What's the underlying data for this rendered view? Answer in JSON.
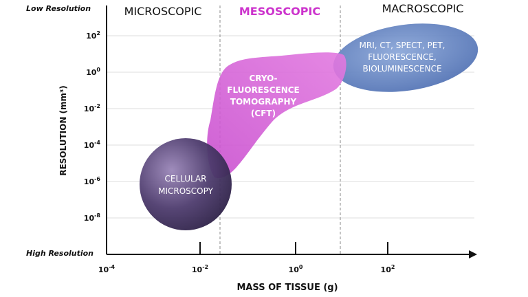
{
  "labels": {
    "low_resolution": "Low Resolution",
    "high_resolution": "High Resolution",
    "y_axis": "RESOLUTION (mm³)",
    "x_axis": "MASS OF TISSUE (g)"
  },
  "regions": {
    "microscopic": "MICROSCOPIC",
    "mesoscopic": "MESOSCOPIC",
    "macroscopic": "MACROSCOPIC"
  },
  "y_ticks": [
    {
      "base": "10",
      "exp": "2"
    },
    {
      "base": "10",
      "exp": "0"
    },
    {
      "base": "10",
      "exp": "-2"
    },
    {
      "base": "10",
      "exp": "-4"
    },
    {
      "base": "10",
      "exp": "-6"
    },
    {
      "base": "10",
      "exp": "-8"
    }
  ],
  "x_ticks": [
    {
      "base": "10",
      "exp": "-4"
    },
    {
      "base": "10",
      "exp": "-2"
    },
    {
      "base": "10",
      "exp": "0"
    },
    {
      "base": "10",
      "exp": "2"
    }
  ],
  "blobs": {
    "cellular": [
      "CELLULAR",
      "MICROSCOPY"
    ],
    "cft": [
      "CRYO-",
      "FLUORESCENCE",
      "TOMOGRAPHY",
      "(CFT)"
    ],
    "macro": [
      "MRI, CT, SPECT, PET,",
      "FLUORESCENCE,",
      "BIOLUMINESCENCE"
    ]
  },
  "colors": {
    "mesoscopic_title": "#cc33cc",
    "cft_fill": "#d65ad6",
    "cellular_fill": "#4a3a6a",
    "macro_fill": "#5577bb",
    "grid": "#dddddd",
    "divider": "#888888"
  }
}
